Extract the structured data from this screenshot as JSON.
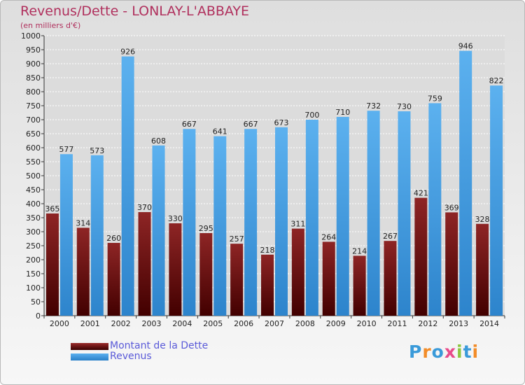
{
  "title": "Revenus/Dette - LONLAY-L'ABBAYE",
  "subtitle": "(en milliers d'€)",
  "chart_data": {
    "type": "bar",
    "categories": [
      "2000",
      "2001",
      "2002",
      "2003",
      "2004",
      "2005",
      "2006",
      "2007",
      "2008",
      "2009",
      "2010",
      "2011",
      "2012",
      "2013",
      "2014"
    ],
    "series": [
      {
        "name": "Montant de la Dette",
        "color": "#7a1b1b",
        "values": [
          365,
          314,
          260,
          370,
          330,
          295,
          257,
          218,
          311,
          264,
          214,
          267,
          421,
          369,
          328
        ]
      },
      {
        "name": "Revenus",
        "color": "#3f9be4",
        "values": [
          577,
          573,
          926,
          608,
          667,
          641,
          667,
          673,
          700,
          710,
          732,
          730,
          759,
          946,
          822
        ]
      }
    ],
    "ylim": [
      0,
      1000
    ],
    "ytick_step": 50,
    "grid": true,
    "legend_position": "bottom-left"
  },
  "legend": {
    "debt_label": "Montant de la Dette",
    "revenue_label": "Revenus"
  },
  "logo": {
    "letters": [
      "P",
      "r",
      "o",
      "x",
      "i",
      "t",
      "i"
    ],
    "colors": [
      "#3a9ad9",
      "#f28c28",
      "#3a9ad9",
      "#e84b8a",
      "#8cc63f",
      "#3a9ad9",
      "#f28c28"
    ]
  }
}
